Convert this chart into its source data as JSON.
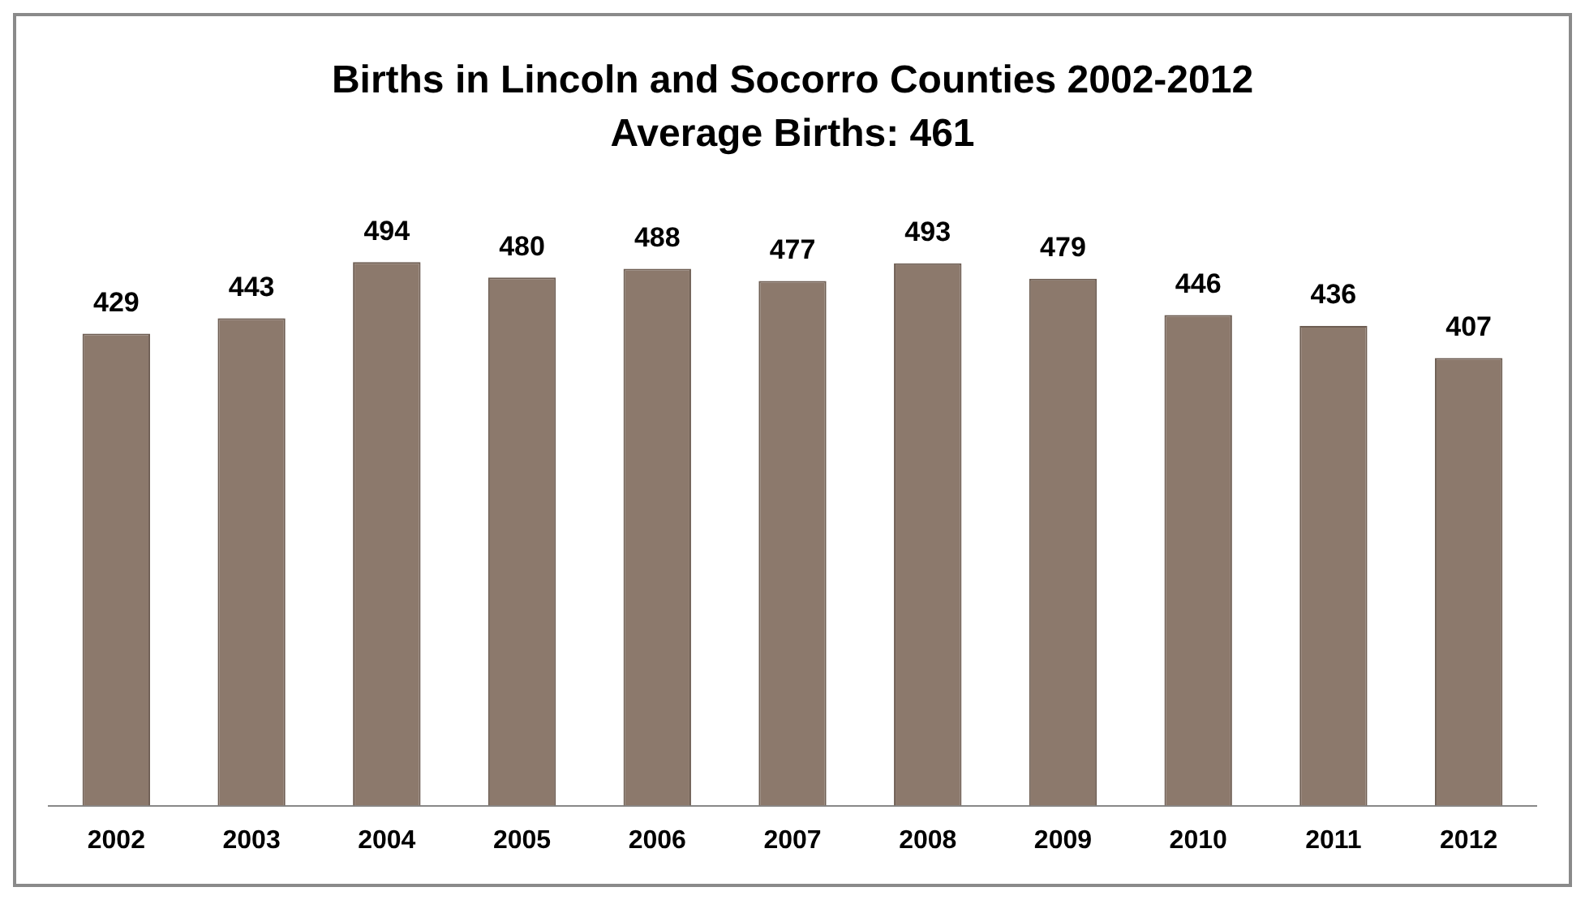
{
  "chart_data": {
    "type": "bar",
    "title": "Births in Lincoln and Socorro Counties 2002-2012",
    "subtitle": "Average Births: 461",
    "categories": [
      "2002",
      "2003",
      "2004",
      "2005",
      "2006",
      "2007",
      "2008",
      "2009",
      "2010",
      "2011",
      "2012"
    ],
    "values": [
      429,
      443,
      494,
      480,
      488,
      477,
      493,
      479,
      446,
      436,
      407
    ],
    "color": "#8c796c",
    "data_labels": true,
    "grid": false,
    "legend": false
  }
}
